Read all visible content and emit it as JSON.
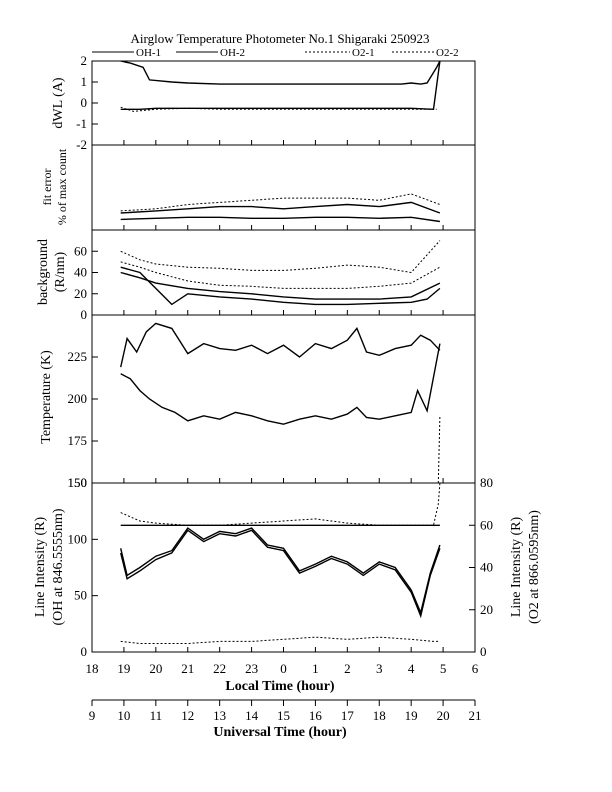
{
  "chart_data": {
    "type": "line",
    "title": "Airglow Temperature Photometer No.1 Shigaraki 250923",
    "legend": [
      "OH-1",
      "OH-2",
      "O2-1",
      "O2-2"
    ],
    "x_axes": {
      "local_time": {
        "label": "Local Time (hour)",
        "ticks": [
          "18",
          "19",
          "20",
          "21",
          "22",
          "23",
          "0",
          "1",
          "2",
          "3",
          "4",
          "5",
          "6"
        ]
      },
      "universal_time": {
        "label": "Universal Time (hour)",
        "ticks": [
          "9",
          "10",
          "11",
          "12",
          "13",
          "14",
          "15",
          "16",
          "17",
          "18",
          "19",
          "20",
          "21"
        ]
      },
      "xlim_local_hours": [
        18,
        30
      ]
    },
    "panels": [
      {
        "id": "dwl",
        "ylabel": "dWL (A)",
        "ylim": [
          -2,
          2
        ],
        "yticks": [
          "2",
          "1",
          "0",
          "-1",
          "-2"
        ],
        "series": [
          {
            "name": "OH-1",
            "style": "solid",
            "x": [
              18.9,
              19.2,
              19.6,
              19.8,
              20.5,
              21,
              22,
              23,
              24,
              25,
              26,
              27,
              27.7,
              28,
              28.3,
              28.5,
              28.8,
              28.9
            ],
            "y": [
              2,
              1.9,
              1.7,
              1.1,
              1,
              0.95,
              0.9,
              0.9,
              0.9,
              0.9,
              0.9,
              0.9,
              0.9,
              0.95,
              0.9,
              0.95,
              1.7,
              2
            ]
          },
          {
            "name": "OH-2",
            "style": "solid",
            "x": [
              18.9,
              19.5,
              20,
              21,
              22,
              23,
              24,
              25,
              26,
              27,
              28,
              28.7,
              28.9
            ],
            "y": [
              -0.3,
              -0.3,
              -0.25,
              -0.25,
              -0.25,
              -0.25,
              -0.25,
              -0.25,
              -0.25,
              -0.25,
              -0.25,
              -0.3,
              2
            ]
          },
          {
            "name": "O2-1",
            "style": "dotted",
            "x": [
              18.9,
              19.3,
              20,
              21,
              22,
              23,
              24,
              25,
              26,
              27,
              28,
              28.8
            ],
            "y": [
              -0.2,
              -0.4,
              -0.3,
              -0.25,
              -0.3,
              -0.3,
              -0.3,
              -0.3,
              -0.3,
              -0.3,
              -0.3,
              -0.3
            ]
          }
        ]
      },
      {
        "id": "fit_error",
        "ylabel": "fit error",
        "ylabel2": "% of max count",
        "ylim": [
          0,
          4
        ],
        "yticks": [],
        "series": [
          {
            "name": "OH-1",
            "style": "solid",
            "x": [
              18.9,
              20,
              21,
              22,
              23,
              24,
              25,
              26,
              27,
              28,
              28.9
            ],
            "y": [
              0.5,
              0.55,
              0.6,
              0.6,
              0.55,
              0.55,
              0.6,
              0.6,
              0.55,
              0.6,
              0.4
            ]
          },
          {
            "name": "OH-2",
            "style": "solid",
            "x": [
              18.9,
              20,
              21,
              22,
              23,
              24,
              25,
              26,
              27,
              28,
              28.9
            ],
            "y": [
              0.8,
              0.9,
              1.0,
              1.1,
              1.1,
              1.0,
              1.1,
              1.2,
              1.1,
              1.3,
              0.8
            ]
          },
          {
            "name": "O2-1",
            "style": "dotted",
            "x": [
              18.9,
              20,
              21,
              22,
              23,
              24,
              25,
              26,
              27,
              28,
              28.9
            ],
            "y": [
              0.9,
              1.0,
              1.2,
              1.3,
              1.4,
              1.5,
              1.5,
              1.5,
              1.4,
              1.7,
              1.2
            ]
          }
        ]
      },
      {
        "id": "background",
        "ylabel": "background",
        "ylabel2": "(R/nm)",
        "ylim": [
          0,
          80
        ],
        "yticks": [
          "60",
          "40",
          "20",
          "0"
        ],
        "series": [
          {
            "name": "OH-1",
            "style": "solid",
            "x": [
              18.9,
              19.5,
              20,
              20.5,
              21,
              22,
              23,
              24,
              25,
              26,
              27,
              28,
              28.5,
              28.9
            ],
            "y": [
              45,
              40,
              25,
              10,
              20,
              17,
              15,
              12,
              10,
              10,
              11,
              12,
              15,
              25
            ]
          },
          {
            "name": "OH-2",
            "style": "solid",
            "x": [
              18.9,
              19.5,
              20,
              21,
              22,
              23,
              24,
              25,
              26,
              27,
              28,
              28.9
            ],
            "y": [
              40,
              35,
              30,
              25,
              22,
              20,
              17,
              15,
              15,
              15,
              17,
              30
            ]
          },
          {
            "name": "O2-1",
            "style": "dotted",
            "x": [
              18.9,
              19.5,
              20,
              21,
              22,
              23,
              24,
              25,
              26,
              27,
              28,
              28.9
            ],
            "y": [
              60,
              52,
              48,
              45,
              44,
              42,
              42,
              44,
              47,
              45,
              40,
              70
            ]
          },
          {
            "name": "O2-2",
            "style": "dotted",
            "x": [
              18.9,
              19.5,
              20,
              21,
              22,
              23,
              24,
              25,
              26,
              27,
              28,
              28.9
            ],
            "y": [
              50,
              45,
              40,
              32,
              28,
              27,
              25,
              25,
              25,
              27,
              30,
              45
            ]
          }
        ]
      },
      {
        "id": "temperature",
        "ylabel": "Temperature (K)",
        "ylim": [
          150,
          250
        ],
        "yticks": [
          "225",
          "200",
          "175",
          "150"
        ],
        "series": [
          {
            "name": "OH-1",
            "style": "solid",
            "x": [
              18.9,
              19.1,
              19.4,
              19.7,
              20,
              20.5,
              21,
              21.5,
              22,
              22.5,
              23,
              23.5,
              24,
              24.5,
              25,
              25.5,
              26,
              26.3,
              26.6,
              27,
              27.5,
              28,
              28.3,
              28.6,
              28.9
            ],
            "y": [
              219,
              236,
              228,
              240,
              245,
              242,
              227,
              233,
              230,
              229,
              232,
              227,
              232,
              225,
              233,
              230,
              235,
              242,
              228,
              226,
              230,
              232,
              238,
              235,
              229
            ]
          },
          {
            "name": "OH-2",
            "style": "solid",
            "x": [
              18.9,
              19.2,
              19.5,
              19.8,
              20.2,
              20.6,
              21,
              21.5,
              22,
              22.5,
              23,
              23.5,
              24,
              24.5,
              25,
              25.5,
              26,
              26.3,
              26.6,
              27,
              27.5,
              28,
              28.2,
              28.5,
              28.9
            ],
            "y": [
              215,
              212,
              205,
              200,
              195,
              192,
              187,
              190,
              188,
              192,
              190,
              187,
              185,
              188,
              190,
              188,
              191,
              195,
              189,
              188,
              190,
              192,
              205,
              193,
              233
            ]
          },
          {
            "name": "O2-1",
            "style": "dotted",
            "x": [
              28.85,
              28.9
            ],
            "y": [
              150,
              190
            ]
          }
        ]
      },
      {
        "id": "line_intensity",
        "ylabel": "Line Intensity (R)",
        "ylabel2": "(OH at 846.5555nm)",
        "ylim": [
          0,
          150
        ],
        "yticks": [
          "150",
          "100",
          "50",
          "0"
        ],
        "ylabel_right": "Line Intensity (R)",
        "ylabel_right2": "(O2 at 866.0595nm)",
        "ylim_right": [
          0,
          80
        ],
        "yticks_right": [
          "80",
          "60",
          "40",
          "20",
          "0"
        ],
        "series": [
          {
            "name": "OH-1",
            "style": "solid",
            "x": [
              18.9,
              19.1,
              19.5,
              20,
              20.5,
              21,
              21.5,
              22,
              22.5,
              23,
              23.5,
              24,
              24.5,
              25,
              25.5,
              26,
              26.5,
              27,
              27.5,
              28,
              28.3,
              28.6,
              28.9
            ],
            "y": [
              92,
              68,
              75,
              85,
              90,
              110,
              100,
              107,
              105,
              110,
              95,
              92,
              72,
              78,
              85,
              80,
              70,
              80,
              75,
              55,
              35,
              70,
              95
            ]
          },
          {
            "name": "OH-2",
            "style": "solid",
            "x": [
              18.9,
              19.1,
              19.5,
              20,
              20.5,
              21,
              21.5,
              22,
              22.5,
              23,
              23.5,
              24,
              24.5,
              25,
              25.5,
              26,
              26.5,
              27,
              27.5,
              28,
              28.3,
              28.6,
              28.9
            ],
            "y": [
              88,
              65,
              72,
              82,
              88,
              108,
              98,
              105,
              103,
              108,
              93,
              90,
              70,
              76,
              83,
              78,
              68,
              78,
              73,
              53,
              32,
              68,
              92
            ]
          },
          {
            "name": "O2-1",
            "style": "dotted",
            "axis": "right",
            "x": [
              18.9,
              19.5,
              20,
              21,
              22,
              23,
              24,
              25,
              26,
              27,
              28,
              28.7,
              28.9
            ],
            "y": [
              5,
              4,
              4,
              4,
              5,
              5,
              6,
              7,
              6,
              7,
              6,
              5,
              5
            ]
          },
          {
            "name": "O2-2",
            "style": "dotted",
            "axis": "right",
            "x": [
              18.9,
              19.5,
              20,
              21,
              22,
              23,
              24,
              25,
              26,
              27,
              28,
              28.7,
              28.85,
              28.9
            ],
            "y": [
              66,
              62,
              61,
              60,
              60,
              61,
              62,
              63,
              61,
              60,
              60,
              60,
              70,
              80
            ]
          },
          {
            "name": "OH-1",
            "style": "solid",
            "axis": "right",
            "x": [
              18.9,
              28.9
            ],
            "y": [
              60,
              60
            ]
          }
        ]
      }
    ]
  }
}
